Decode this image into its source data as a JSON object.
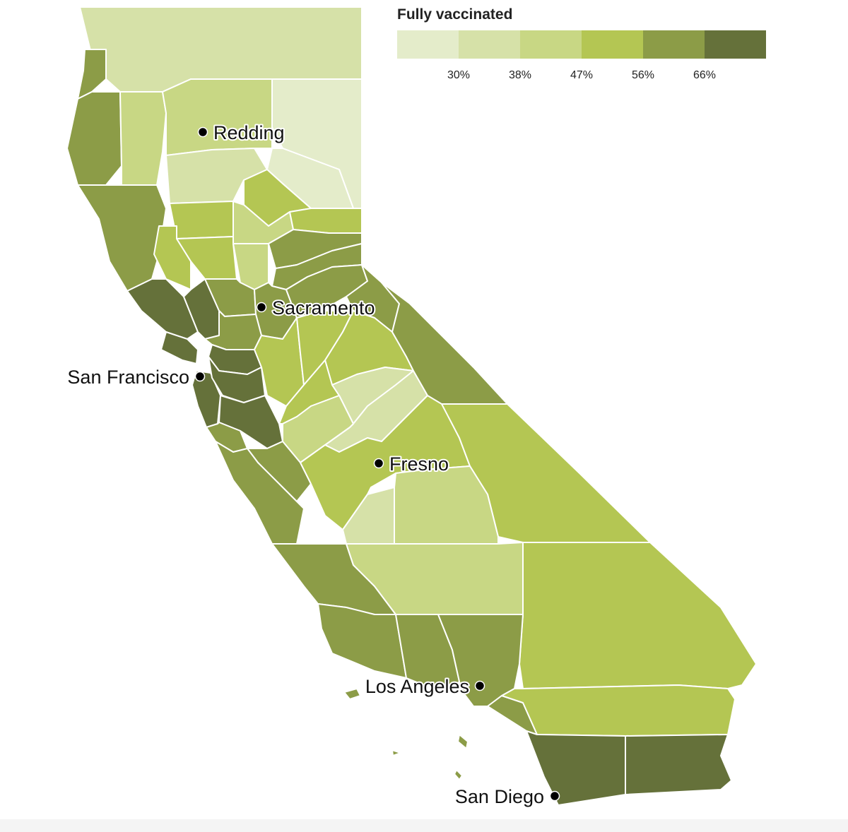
{
  "legend": {
    "title": "Fully vaccinated",
    "colors": [
      "#e4ecca",
      "#d6e1a8",
      "#c8d784",
      "#b4c653",
      "#8c9c47",
      "#65713a"
    ],
    "ticks": [
      "30%",
      "38%",
      "47%",
      "56%",
      "66%"
    ]
  },
  "cities": [
    {
      "name": "Redding"
    },
    {
      "name": "Sacramento"
    },
    {
      "name": "San Francisco"
    },
    {
      "name": "Fresno"
    },
    {
      "name": "Los Angeles"
    },
    {
      "name": "San Diego"
    }
  ],
  "regions": [
    {
      "key": "siskiyou",
      "level": 1
    },
    {
      "key": "modoc",
      "level": 0
    },
    {
      "key": "del-norte",
      "level": 4
    },
    {
      "key": "humboldt",
      "level": 4
    },
    {
      "key": "trinity",
      "level": 2
    },
    {
      "key": "shasta",
      "level": 2
    },
    {
      "key": "lassen",
      "level": 0
    },
    {
      "key": "tehama",
      "level": 1
    },
    {
      "key": "plumas",
      "level": 3
    },
    {
      "key": "mendocino",
      "level": 4
    },
    {
      "key": "glenn",
      "level": 3
    },
    {
      "key": "butte",
      "level": 2
    },
    {
      "key": "sierra",
      "level": 3
    },
    {
      "key": "lake",
      "level": 3
    },
    {
      "key": "colusa",
      "level": 3
    },
    {
      "key": "sutter-yuba",
      "level": 2
    },
    {
      "key": "nevada",
      "level": 4
    },
    {
      "key": "placer",
      "level": 4
    },
    {
      "key": "sonoma",
      "level": 5
    },
    {
      "key": "napa",
      "level": 5
    },
    {
      "key": "yolo",
      "level": 4
    },
    {
      "key": "sacramento",
      "level": 4
    },
    {
      "key": "el-dorado",
      "level": 4
    },
    {
      "key": "alpine-mono-n",
      "level": 4
    },
    {
      "key": "marin",
      "level": 5
    },
    {
      "key": "solano",
      "level": 4
    },
    {
      "key": "contra-costa",
      "level": 5
    },
    {
      "key": "sf-san-mateo",
      "level": 5
    },
    {
      "key": "alameda",
      "level": 5
    },
    {
      "key": "santa-clara",
      "level": 5
    },
    {
      "key": "santa-cruz",
      "level": 4
    },
    {
      "key": "san-joaquin",
      "level": 3
    },
    {
      "key": "amador-calaveras",
      "level": 3
    },
    {
      "key": "tuolumne",
      "level": 3
    },
    {
      "key": "stanislaus",
      "level": 3
    },
    {
      "key": "mariposa",
      "level": 1
    },
    {
      "key": "madera",
      "level": 1
    },
    {
      "key": "merced",
      "level": 2
    },
    {
      "key": "san-benito",
      "level": 4
    },
    {
      "key": "monterey",
      "level": 4
    },
    {
      "key": "fresno",
      "level": 3
    },
    {
      "key": "mono",
      "level": 4
    },
    {
      "key": "inyo",
      "level": 3
    },
    {
      "key": "kings",
      "level": 1
    },
    {
      "key": "tulare",
      "level": 2
    },
    {
      "key": "san-luis-obispo",
      "level": 4
    },
    {
      "key": "kern",
      "level": 2
    },
    {
      "key": "san-bernardino",
      "level": 3
    },
    {
      "key": "santa-barbara",
      "level": 4
    },
    {
      "key": "ventura",
      "level": 4
    },
    {
      "key": "los-angeles",
      "level": 4
    },
    {
      "key": "orange",
      "level": 4
    },
    {
      "key": "riverside",
      "level": 3
    },
    {
      "key": "san-diego",
      "level": 5
    },
    {
      "key": "imperial",
      "level": 5
    },
    {
      "key": "channel-islands",
      "level": 4
    }
  ]
}
